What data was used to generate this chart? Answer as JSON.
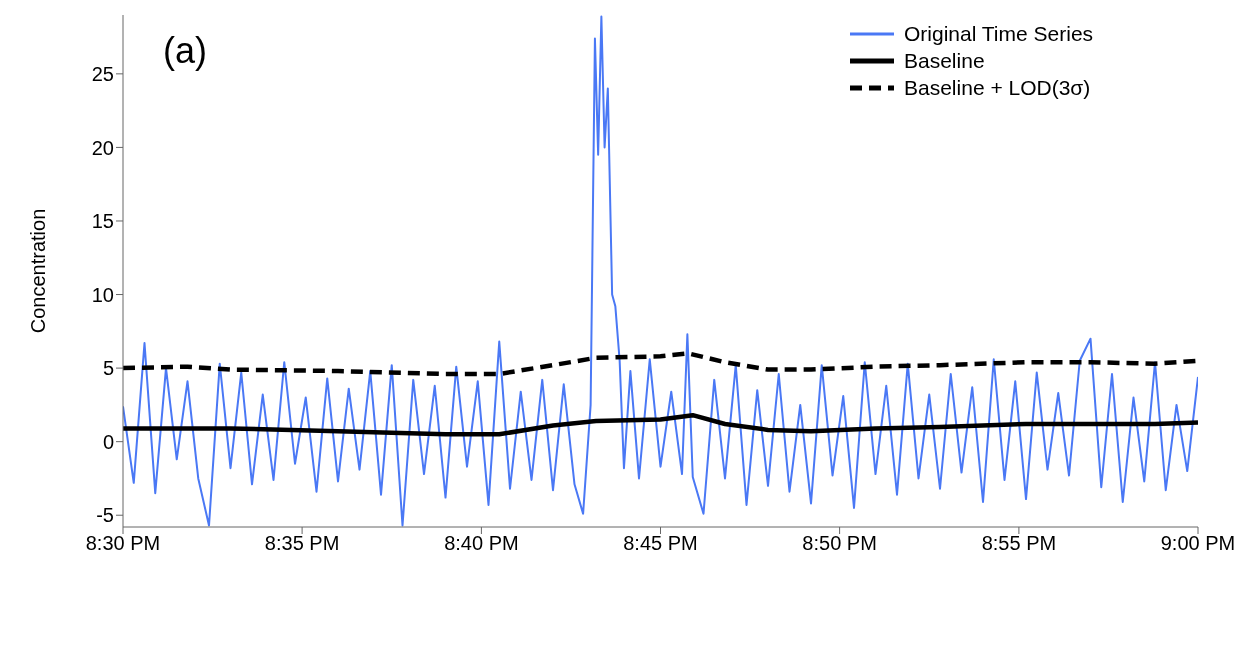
{
  "chart_data": {
    "type": "line",
    "ylabel": "Concentration",
    "annotations": [
      "(a)"
    ],
    "legend": "top right",
    "grid": false,
    "marker": "none",
    "xlim": [
      20.5,
      21.0
    ],
    "xticks": [
      {
        "value": 20.5,
        "label": "8:30 PM"
      },
      {
        "value": 20.5833,
        "label": "8:35 PM"
      },
      {
        "value": 20.6667,
        "label": "8:40 PM"
      },
      {
        "value": 20.75,
        "label": "8:45 PM"
      },
      {
        "value": 20.8333,
        "label": "8:50 PM"
      },
      {
        "value": 20.9167,
        "label": "8:55 PM"
      },
      {
        "value": 21.0,
        "label": "9:00 PM"
      }
    ],
    "ylim": [
      -5.8,
      29
    ],
    "yticks": [
      -5,
      0,
      5,
      10,
      15,
      20,
      25
    ],
    "series": [
      {
        "name": "Original Time Series",
        "color": "#4a78f5",
        "line_style": "solid",
        "x": [
          20.5,
          20.505,
          20.51,
          20.515,
          20.52,
          20.525,
          20.53,
          20.535,
          20.54,
          20.545,
          20.55,
          20.555,
          20.56,
          20.565,
          20.57,
          20.575,
          20.58,
          20.585,
          20.59,
          20.595,
          20.6,
          20.605,
          20.61,
          20.615,
          20.62,
          20.625,
          20.63,
          20.635,
          20.64,
          20.645,
          20.65,
          20.655,
          20.66,
          20.665,
          20.67,
          20.675,
          20.68,
          20.685,
          20.69,
          20.695,
          20.7,
          20.705,
          20.71,
          20.714,
          20.7175,
          20.7195,
          20.721,
          20.7225,
          20.724,
          20.7255,
          20.7275,
          20.729,
          20.731,
          20.733,
          20.736,
          20.74,
          20.745,
          20.75,
          20.755,
          20.76,
          20.7625,
          20.765,
          20.77,
          20.775,
          20.78,
          20.785,
          20.79,
          20.795,
          20.8,
          20.805,
          20.81,
          20.815,
          20.82,
          20.825,
          20.83,
          20.835,
          20.84,
          20.845,
          20.85,
          20.855,
          20.86,
          20.865,
          20.87,
          20.875,
          20.88,
          20.885,
          20.89,
          20.895,
          20.9,
          20.905,
          20.91,
          20.915,
          20.92,
          20.925,
          20.93,
          20.935,
          20.94,
          20.945,
          20.95,
          20.955,
          20.96,
          20.965,
          20.97,
          20.975,
          20.98,
          20.985,
          20.99,
          20.995,
          21.0
        ],
        "values": [
          2.4,
          -2.8,
          6.7,
          -3.5,
          5.0,
          -1.2,
          4.1,
          -2.5,
          -5.7,
          5.3,
          -1.8,
          4.7,
          -2.9,
          3.2,
          -2.6,
          5.4,
          -1.5,
          3.0,
          -3.4,
          4.3,
          -2.7,
          3.6,
          -1.9,
          4.8,
          -3.6,
          5.2,
          -5.7,
          4.2,
          -2.2,
          3.8,
          -3.8,
          5.1,
          -1.7,
          4.1,
          -4.3,
          6.8,
          -3.2,
          3.4,
          -2.6,
          4.2,
          -3.3,
          3.9,
          -2.9,
          -4.9,
          2.5,
          27.4,
          19.5,
          28.9,
          20.0,
          24.0,
          10.0,
          9.2,
          5.5,
          -1.8,
          4.8,
          -2.5,
          5.6,
          -1.7,
          3.4,
          -2.2,
          7.3,
          -2.4,
          -4.9,
          4.2,
          -2.5,
          5.2,
          -4.3,
          3.5,
          -3.0,
          4.6,
          -3.4,
          2.5,
          -4.2,
          5.2,
          -2.3,
          3.1,
          -4.5,
          5.4,
          -2.2,
          3.8,
          -3.6,
          5.3,
          -2.5,
          3.2,
          -3.2,
          4.6,
          -2.1,
          3.7,
          -4.1,
          5.6,
          -2.6,
          4.1,
          -3.9,
          4.7,
          -1.9,
          3.3,
          -2.3,
          5.5,
          7.0,
          -3.1,
          4.6,
          -4.1,
          3.0,
          -2.7,
          5.4,
          -3.3,
          2.5,
          -2.0,
          4.4
        ]
      },
      {
        "name": "Baseline",
        "color": "#000000",
        "line_style": "solid",
        "x": [
          20.5,
          20.55,
          20.6,
          20.65,
          20.675,
          20.7,
          20.72,
          20.75,
          20.765,
          20.78,
          20.8,
          20.82,
          20.85,
          20.88,
          20.92,
          20.95,
          20.98,
          21.0
        ],
        "values": [
          0.9,
          0.9,
          0.7,
          0.5,
          0.5,
          1.1,
          1.4,
          1.5,
          1.8,
          1.2,
          0.8,
          0.7,
          0.9,
          1.0,
          1.2,
          1.2,
          1.2,
          1.3
        ]
      },
      {
        "name": "Baseline + LOD(3σ)",
        "color": "#000000",
        "line_style": "dashed",
        "x": [
          20.5,
          20.53,
          20.55,
          20.6,
          20.65,
          20.675,
          20.7,
          20.72,
          20.75,
          20.763,
          20.78,
          20.8,
          20.82,
          20.85,
          20.88,
          20.92,
          20.95,
          20.98,
          21.0
        ],
        "values": [
          5.0,
          5.1,
          4.9,
          4.8,
          4.6,
          4.6,
          5.2,
          5.7,
          5.8,
          6.0,
          5.4,
          4.9,
          4.9,
          5.1,
          5.2,
          5.4,
          5.4,
          5.3,
          5.5
        ]
      }
    ]
  }
}
